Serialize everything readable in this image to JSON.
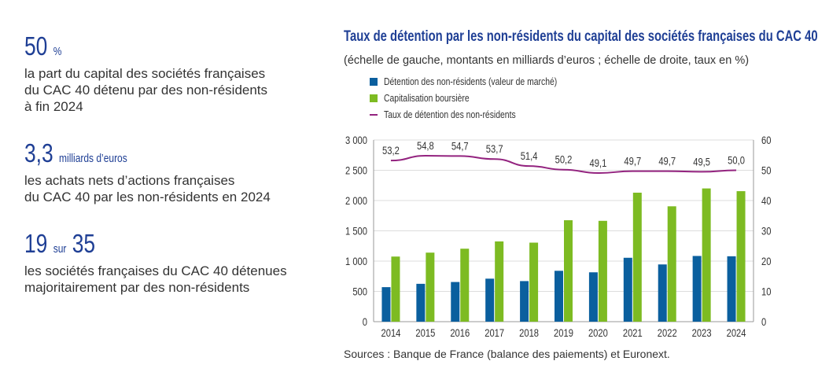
{
  "key_figures": [
    {
      "value": "50",
      "unit": "%",
      "description": [
        "la part du capital des sociétés françaises",
        "du CAC 40 détenu par des non-résidents",
        "à fin 2024"
      ]
    },
    {
      "value": "3,3",
      "unit": "milliards d’euros",
      "description": [
        "les achats nets d’actions françaises",
        "du CAC 40 par les non-résidents en 2024"
      ]
    },
    {
      "value": "19",
      "unit": "sur",
      "value2": "35",
      "description": [
        "les sociétés françaises du CAC 40 détenues",
        "majoritairement par des non-résidents"
      ]
    }
  ],
  "sources": "Sources : Banque de France (balance des paiements) et Euronext.",
  "chart_data": {
    "type": "bar",
    "title": "Taux de détention par les non-résidents du capital des sociétés françaises du CAC 40",
    "subtitle": "(échelle de gauche, montants en milliards d’euros ; échelle de droite, taux en %)",
    "categories": [
      "2014",
      "2015",
      "2016",
      "2017",
      "2018",
      "2019",
      "2020",
      "2021",
      "2022",
      "2023",
      "2024"
    ],
    "series": [
      {
        "name": "Détention des non-résidents (valeur de marché)",
        "type": "bar",
        "axis": "left",
        "color": "#0a5f9e",
        "values": [
          570,
          625,
          655,
          710,
          670,
          840,
          815,
          1055,
          945,
          1085,
          1080
        ]
      },
      {
        "name": "Capitalisation boursière",
        "type": "bar",
        "axis": "left",
        "color": "#7dbb22",
        "values": [
          1075,
          1140,
          1205,
          1325,
          1305,
          1675,
          1665,
          2130,
          1905,
          2200,
          2155
        ]
      },
      {
        "name": "Taux de détention des non-résidents",
        "type": "line",
        "axis": "right",
        "color": "#93237f",
        "values": [
          53.2,
          54.8,
          54.7,
          53.7,
          51.4,
          50.2,
          49.1,
          49.7,
          49.7,
          49.5,
          50.0
        ],
        "labels": [
          "53,2",
          "54,8",
          "54,7",
          "53,7",
          "51,4",
          "50,2",
          "49,1",
          "49,7",
          "49,7",
          "49,5",
          "50,0"
        ]
      }
    ],
    "y_left": {
      "range": [
        0,
        3000
      ],
      "ticks": [
        "0",
        "500",
        "1 000",
        "1 500",
        "2 000",
        "2 500",
        "3 000"
      ]
    },
    "y_right": {
      "range": [
        0,
        60
      ],
      "ticks": [
        "0",
        "10",
        "20",
        "30",
        "40",
        "50",
        "60"
      ]
    },
    "grid": true,
    "legend_position": "top-left"
  }
}
